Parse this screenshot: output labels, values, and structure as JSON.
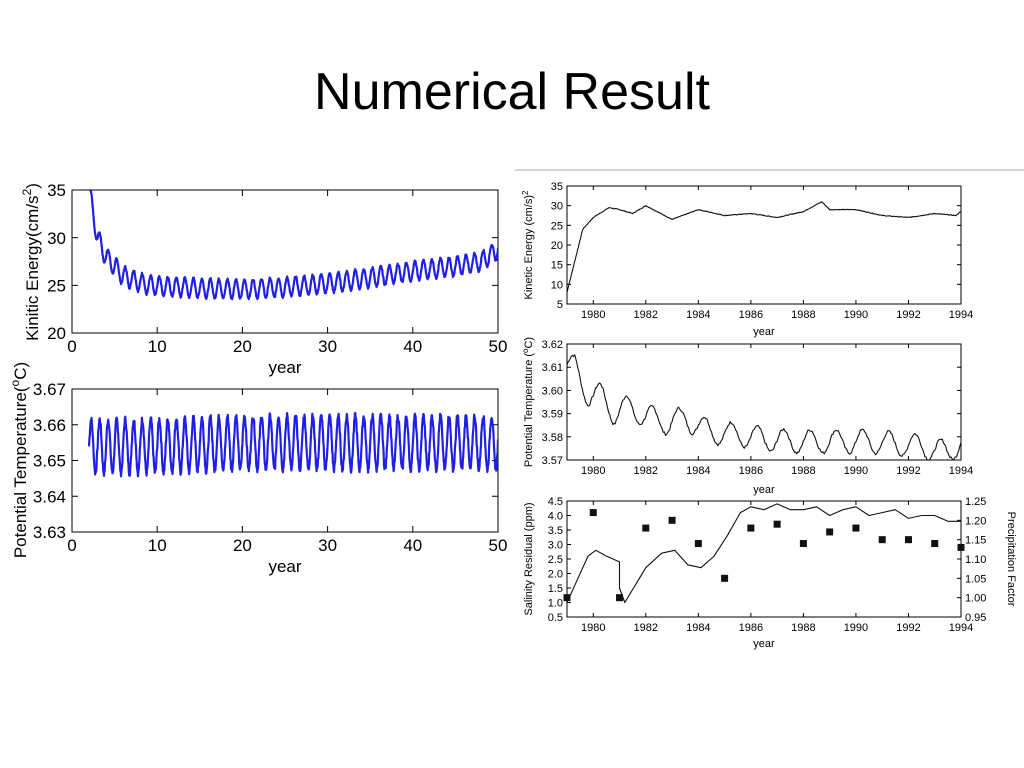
{
  "slide": {
    "title": "Numerical Result"
  },
  "colors": {
    "left_series": "#1f1fe6",
    "right_series": "#111111",
    "frame": "#000000",
    "separator": "#c8c8c8"
  },
  "chart_data": [
    {
      "id": "ke-left",
      "type": "line",
      "xlabel": "year",
      "ylabel": "Kinitic Energy(cm/s",
      "ylabel_sup": "2",
      "ylabel_end": ")",
      "xlim": [
        0,
        50
      ],
      "ylim": [
        20,
        35
      ],
      "xticks": [
        0,
        10,
        20,
        30,
        40,
        50
      ],
      "yticks": [
        20,
        25,
        30,
        35
      ],
      "series": [
        {
          "x_range": [
            2,
            50
          ],
          "trend": [
            [
              2,
              35
            ],
            [
              3,
              30
            ],
            [
              4,
              28
            ],
            [
              6,
              26
            ],
            [
              9,
              25
            ],
            [
              15,
              24.7
            ],
            [
              20,
              24.6
            ],
            [
              25,
              24.8
            ],
            [
              30,
              25.2
            ],
            [
              35,
              25.8
            ],
            [
              40,
              26.5
            ],
            [
              45,
              27
            ],
            [
              48,
              27.5
            ],
            [
              50,
              28.8
            ]
          ],
          "cycle_amplitude": 1.0,
          "cycle_period_years": 1
        }
      ]
    },
    {
      "id": "pt-left",
      "type": "line",
      "xlabel": "year",
      "ylabel": "Potential Temperature(",
      "ylabel_sup": "o",
      "ylabel_end": "C)",
      "xlim": [
        0,
        50
      ],
      "ylim": [
        3.63,
        3.67
      ],
      "xticks": [
        0,
        10,
        20,
        30,
        40,
        50
      ],
      "yticks": [
        3.63,
        3.64,
        3.65,
        3.66,
        3.67
      ],
      "series": [
        {
          "x_range": [
            2,
            50
          ],
          "trend": [
            [
              2,
              3.654
            ],
            [
              10,
              3.654
            ],
            [
              20,
              3.655
            ],
            [
              30,
              3.655
            ],
            [
              40,
              3.655
            ],
            [
              50,
              3.655
            ]
          ],
          "cycle_amplitude": 0.0075,
          "cycle_period_years": 1
        }
      ]
    },
    {
      "id": "ke-right",
      "type": "line",
      "xlabel": "year",
      "ylabel": "Kinetic Energy  (cm/s)",
      "ylabel_sup": "2",
      "xlim": [
        1979,
        1994
      ],
      "ylim": [
        5,
        35
      ],
      "xticks": [
        1980,
        1982,
        1984,
        1986,
        1988,
        1990,
        1992,
        1994
      ],
      "yticks": [
        5,
        10,
        15,
        20,
        25,
        30,
        35
      ],
      "series": [
        {
          "trend": [
            [
              1979,
              8
            ],
            [
              1979.3,
              16
            ],
            [
              1979.6,
              24
            ],
            [
              1980,
              27
            ],
            [
              1980.6,
              29.5
            ],
            [
              1981,
              29
            ],
            [
              1981.5,
              28
            ],
            [
              1982,
              30
            ],
            [
              1983,
              26.5
            ],
            [
              1984,
              29
            ],
            [
              1985,
              27.5
            ],
            [
              1986,
              28
            ],
            [
              1987,
              27
            ],
            [
              1988,
              28.5
            ],
            [
              1988.7,
              31
            ],
            [
              1989,
              29
            ],
            [
              1990,
              29
            ],
            [
              1991,
              27.5
            ],
            [
              1992,
              27
            ],
            [
              1993,
              28
            ],
            [
              1993.8,
              27.5
            ],
            [
              1994,
              28.5
            ]
          ]
        }
      ]
    },
    {
      "id": "pt-right",
      "type": "line",
      "xlabel": "year",
      "ylabel": "Potential Temperature (",
      "ylabel_sup": "o",
      "ylabel_end": "C)",
      "xlim": [
        1979,
        1994
      ],
      "ylim": [
        3.57,
        3.62
      ],
      "xticks": [
        1980,
        1982,
        1984,
        1986,
        1988,
        1990,
        1992,
        1994
      ],
      "yticks": [
        3.57,
        3.58,
        3.59,
        3.6,
        3.61,
        3.62
      ],
      "series": [
        {
          "trend": [
            [
              1979,
              3.611
            ],
            [
              1979.3,
              3.61
            ],
            [
              1979.8,
              3.598
            ],
            [
              1980.3,
              3.598
            ],
            [
              1980.8,
              3.59
            ],
            [
              1981.3,
              3.593
            ],
            [
              1982,
              3.589
            ],
            [
              1982.8,
              3.586
            ],
            [
              1983.5,
              3.588
            ],
            [
              1984.5,
              3.582
            ],
            [
              1985.5,
              3.581
            ],
            [
              1986.5,
              3.579
            ],
            [
              1987.5,
              3.578
            ],
            [
              1988.5,
              3.578
            ],
            [
              1989.5,
              3.578
            ],
            [
              1990.5,
              3.578
            ],
            [
              1991.5,
              3.577
            ],
            [
              1992.5,
              3.576
            ],
            [
              1993.5,
              3.573
            ],
            [
              1994,
              3.578
            ]
          ],
          "cycle_amplitude": 0.005,
          "cycle_period_years": 1
        }
      ]
    },
    {
      "id": "sal-right",
      "type": "line",
      "xlabel": "year",
      "ylabel": "Salinity Residual  (ppm)",
      "ylabel_right": "Precipitation Factor",
      "xlim": [
        1979,
        1994
      ],
      "ylim": [
        0.5,
        4.5
      ],
      "ylim_right": [
        0.95,
        1.25
      ],
      "xticks": [
        1980,
        1982,
        1984,
        1986,
        1988,
        1990,
        1992,
        1994
      ],
      "yticks": [
        0.5,
        1.0,
        1.5,
        2.0,
        2.5,
        3.0,
        3.5,
        4.0,
        4.5
      ],
      "yticks_right": [
        0.95,
        1.0,
        1.05,
        1.1,
        1.15,
        1.2,
        1.25
      ],
      "series": [
        {
          "name": "",
          "type": "line",
          "points": [
            [
              1979,
              1.0
            ],
            [
              1979.4,
              1.8
            ],
            [
              1979.8,
              2.6
            ],
            [
              1980.1,
              2.8
            ],
            [
              1980.5,
              2.6
            ],
            [
              1981,
              2.4
            ],
            [
              1981,
              1.5
            ],
            [
              1981.2,
              1.0
            ],
            [
              1981.6,
              1.6
            ],
            [
              1982,
              2.2
            ],
            [
              1982.6,
              2.7
            ],
            [
              1983.1,
              2.8
            ],
            [
              1983.6,
              2.3
            ],
            [
              1984.1,
              2.2
            ],
            [
              1984.6,
              2.6
            ],
            [
              1985.1,
              3.3
            ],
            [
              1985.6,
              4.1
            ],
            [
              1986,
              4.3
            ],
            [
              1986.5,
              4.2
            ],
            [
              1987,
              4.4
            ],
            [
              1987.5,
              4.2
            ],
            [
              1988,
              4.2
            ],
            [
              1988.5,
              4.3
            ],
            [
              1989,
              4.0
            ],
            [
              1989.5,
              4.2
            ],
            [
              1990,
              4.3
            ],
            [
              1990.5,
              4.0
            ],
            [
              1991,
              4.1
            ],
            [
              1991.5,
              4.2
            ],
            [
              1992,
              3.9
            ],
            [
              1992.5,
              4.0
            ],
            [
              1993,
              4.0
            ],
            [
              1993.5,
              3.8
            ],
            [
              1994,
              3.8
            ]
          ]
        },
        {
          "name": "",
          "type": "scatter",
          "axis": "right",
          "points": [
            [
              1979,
              1.0
            ],
            [
              1980,
              1.22
            ],
            [
              1981,
              1.0
            ],
            [
              1982,
              1.18
            ],
            [
              1983,
              1.2
            ],
            [
              1984,
              1.14
            ],
            [
              1985,
              1.05
            ],
            [
              1986,
              1.18
            ],
            [
              1987,
              1.19
            ],
            [
              1988,
              1.14
            ],
            [
              1989,
              1.17
            ],
            [
              1990,
              1.18
            ],
            [
              1991,
              1.15
            ],
            [
              1992,
              1.15
            ],
            [
              1993,
              1.14
            ],
            [
              1994,
              1.13
            ]
          ]
        }
      ]
    }
  ]
}
